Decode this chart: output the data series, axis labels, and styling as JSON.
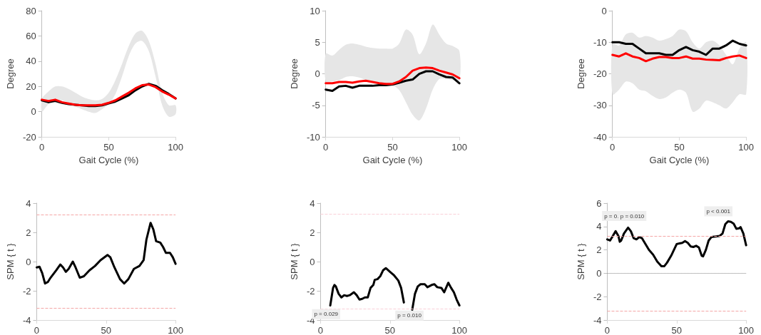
{
  "chart_data": [
    {
      "type": "line",
      "xlabel": "Gait Cycle (%)",
      "ylabel": "Degree",
      "xlim": [
        0,
        100
      ],
      "xticks": [
        0,
        50,
        100
      ],
      "ylim": [
        -20,
        80
      ],
      "yticks": [
        -20,
        0,
        20,
        40,
        60,
        80
      ],
      "grid": false,
      "marker": "none",
      "line_style": "solid",
      "x": [
        0,
        5,
        10,
        15,
        20,
        25,
        30,
        35,
        40,
        45,
        50,
        55,
        60,
        65,
        70,
        75,
        80,
        85,
        90,
        95,
        100
      ],
      "series": [
        {
          "color": "#e6e6e6",
          "values": [
            null,
            null,
            null,
            null,
            null,
            null,
            null,
            null,
            null,
            null,
            null,
            null,
            null,
            null,
            null,
            null,
            null,
            null,
            null,
            null,
            null
          ],
          "lower": [
            0,
            6,
            9,
            9,
            7,
            4,
            2,
            0,
            -1,
            2,
            6,
            14,
            28,
            44,
            54,
            56,
            48,
            28,
            5,
            -4,
            -2
          ],
          "upper": [
            10,
            16,
            20,
            20,
            18,
            15,
            12,
            10,
            9,
            10,
            15,
            25,
            38,
            52,
            62,
            64,
            56,
            38,
            15,
            5,
            5
          ]
        },
        {
          "color": "#000000",
          "values": [
            9,
            7.5,
            8.5,
            7,
            6,
            5.5,
            5,
            4.5,
            4.5,
            5,
            6.5,
            8,
            10.5,
            13,
            17,
            20,
            22,
            20.5,
            17,
            14,
            10.5
          ]
        },
        {
          "color": "#ff0000",
          "values": [
            9.5,
            8.5,
            9.5,
            7.5,
            6.5,
            5.5,
            5,
            5,
            5,
            5.5,
            7,
            9,
            12,
            15,
            18.5,
            21,
            21.5,
            19.5,
            16,
            13.5,
            10.5
          ]
        }
      ]
    },
    {
      "type": "line",
      "xlabel": "Gait Cycle (%)",
      "ylabel": "Degree",
      "xlim": [
        0,
        100
      ],
      "xticks": [
        0,
        50,
        100
      ],
      "ylim": [
        -10,
        10
      ],
      "yticks": [
        -10,
        -5,
        0,
        5,
        10
      ],
      "grid": false,
      "marker": "none",
      "line_style": "solid",
      "x": [
        0,
        5,
        10,
        15,
        20,
        25,
        30,
        35,
        40,
        45,
        50,
        55,
        60,
        65,
        70,
        75,
        80,
        85,
        90,
        95,
        100
      ],
      "series": [
        {
          "color": "#e6e6e6",
          "values": [
            null,
            null,
            null,
            null,
            null,
            null,
            null,
            null,
            null,
            null,
            null,
            null,
            null,
            null,
            null,
            null,
            null,
            null,
            null,
            null,
            null
          ],
          "lower": [
            -1.2,
            -1.2,
            -1,
            -0.5,
            -0.4,
            -0.6,
            -1,
            -1.3,
            -1.5,
            -1.6,
            -1.8,
            -2.6,
            -4.5,
            -6.5,
            -7.4,
            -5.5,
            -2.5,
            -0.8,
            -0.8,
            -1,
            -1
          ],
          "upper": [
            3.2,
            2.9,
            3.8,
            4.6,
            4.8,
            4.6,
            4.3,
            4.1,
            4,
            4,
            4,
            4.8,
            7,
            6.2,
            3.1,
            4.8,
            7.8,
            6.2,
            4.8,
            4.4,
            3.6
          ]
        },
        {
          "color": "#000000",
          "values": [
            -2.5,
            -2.7,
            -2,
            -1.9,
            -2.2,
            -1.9,
            -1.9,
            -1.9,
            -1.8,
            -1.8,
            -1.7,
            -1.4,
            -1.1,
            -0.9,
            0,
            0.4,
            0.4,
            -0.1,
            -0.5,
            -0.6,
            -1.5
          ]
        },
        {
          "color": "#ff0000",
          "values": [
            -1.5,
            -1.5,
            -1.3,
            -1.3,
            -1.4,
            -1.2,
            -1.1,
            -1.3,
            -1.5,
            -1.6,
            -1.6,
            -1.2,
            -0.5,
            0.5,
            0.9,
            1,
            0.9,
            0.5,
            0.2,
            -0.1,
            -0.7
          ]
        }
      ]
    },
    {
      "type": "line",
      "xlabel": "Gait Cycle (%)",
      "ylabel": "Degree",
      "xlim": [
        0,
        100
      ],
      "xticks": [
        0,
        50,
        100
      ],
      "ylim": [
        -40,
        0
      ],
      "yticks": [
        -40,
        -30,
        -20,
        -10,
        0
      ],
      "grid": false,
      "marker": "none",
      "line_style": "solid",
      "x": [
        0,
        5,
        10,
        15,
        20,
        25,
        30,
        35,
        40,
        45,
        50,
        55,
        60,
        65,
        70,
        75,
        80,
        85,
        90,
        95,
        100
      ],
      "series": [
        {
          "color": "#e6e6e6",
          "values": [
            null,
            null,
            null,
            null,
            null,
            null,
            null,
            null,
            null,
            null,
            null,
            null,
            null,
            null,
            null,
            null,
            null,
            null,
            null,
            null,
            null
          ],
          "lower": [
            -26.5,
            -25,
            -22.5,
            -23,
            -25,
            -25.5,
            -27,
            -28,
            -27.5,
            -26,
            -25,
            -26,
            -32,
            -31,
            -28.5,
            -29,
            -30,
            -31,
            -29,
            -26.5,
            -26.5
          ],
          "upper": [
            -10.5,
            -11,
            -7.5,
            -7,
            -8.5,
            -8,
            -8.5,
            -9.5,
            -9,
            -8,
            -6,
            -6.5,
            -10,
            -12,
            -10,
            -9.5,
            -11,
            -14,
            -17,
            -12,
            -10
          ]
        },
        {
          "color": "#000000",
          "values": [
            -10,
            -10,
            -10.5,
            -10.5,
            -12,
            -13.5,
            -13.5,
            -13.5,
            -14,
            -14,
            -12.5,
            -11.5,
            -12.5,
            -13,
            -14,
            -12,
            -12,
            -11,
            -9.5,
            -10.5,
            -11
          ]
        },
        {
          "color": "#ff0000",
          "values": [
            -14,
            -14.5,
            -13.5,
            -14.5,
            -15,
            -16,
            -15.2,
            -14.7,
            -14.7,
            -15,
            -15,
            -14.5,
            -15.2,
            -15.2,
            -15.5,
            -15.6,
            -15.7,
            -15,
            -14.5,
            -14.2,
            -15
          ]
        }
      ]
    },
    {
      "type": "line",
      "ylabel": "SPM { t }",
      "xlim": [
        0,
        100
      ],
      "xticks": [
        0,
        50,
        100
      ],
      "ylim": [
        -4,
        4
      ],
      "yticks": [
        -4,
        -2,
        0,
        2,
        4
      ],
      "grid": false,
      "marker": "none",
      "line_style": "solid",
      "ref_lines": [
        {
          "axis": "y",
          "value": 3.2,
          "color": "#f4a6a6",
          "line_style": "dashed"
        },
        {
          "axis": "y",
          "value": -3.2,
          "color": "#f4a6a6",
          "line_style": "dashed"
        }
      ],
      "x": [
        0,
        2,
        4,
        6,
        8,
        10,
        14,
        17,
        19,
        21,
        23,
        26,
        28,
        31,
        34,
        38,
        42,
        46,
        51,
        53,
        56,
        60,
        63,
        66,
        70,
        74,
        77,
        79,
        82,
        84,
        86,
        89,
        91,
        93,
        96,
        98,
        100
      ],
      "series": [
        {
          "color": "#000000",
          "values": [
            -0.4,
            -0.35,
            -0.8,
            -1.5,
            -1.4,
            -1.1,
            -0.6,
            -0.2,
            -0.4,
            -0.7,
            -0.5,
            0,
            -0.4,
            -1.1,
            -1,
            -0.6,
            -0.3,
            0.1,
            0.45,
            0.3,
            -0.4,
            -1.2,
            -1.5,
            -1.2,
            -0.5,
            -0.3,
            0.1,
            1.5,
            2.65,
            2.2,
            1.4,
            1.3,
            1,
            0.6,
            0.6,
            0.3,
            -0.15
          ]
        }
      ]
    },
    {
      "type": "line",
      "ylabel": "SPM { t }",
      "xlim": [
        0,
        100
      ],
      "xticks": [
        0,
        50,
        100
      ],
      "ylim": [
        -4,
        4
      ],
      "yticks": [
        -4,
        -2,
        0,
        2,
        4
      ],
      "grid": false,
      "marker": "none",
      "line_style": "solid",
      "ref_lines": [
        {
          "axis": "y",
          "value": 3.25,
          "color": "#f9d0d8",
          "line_style": "dashed"
        },
        {
          "axis": "y",
          "value": -3.25,
          "color": "#f9d0d8",
          "line_style": "dashed"
        }
      ],
      "annotations": [
        {
          "text": "p = 0.029",
          "x": 4,
          "y": -3.6
        },
        {
          "text": "p = 0.010",
          "x": 64,
          "y": -3.7
        }
      ],
      "x": [
        7,
        9,
        10,
        11,
        13,
        15,
        17,
        19,
        21,
        24,
        26,
        28,
        30,
        32,
        34,
        36,
        38,
        39,
        41,
        43,
        45,
        47,
        50,
        53,
        56,
        58,
        60,
        62,
        64,
        66,
        68,
        70,
        72,
        75,
        77,
        80,
        82,
        84,
        87,
        89,
        92,
        94,
        96,
        98,
        100
      ],
      "series": [
        {
          "color": "#000000",
          "values": [
            -3,
            -1.8,
            -1.6,
            -1.7,
            -2.2,
            -2.45,
            -2.3,
            -2.35,
            -2.3,
            -2.1,
            -2.3,
            -2.6,
            -2.55,
            -2.45,
            -2.45,
            -1.8,
            -1.6,
            -1.25,
            -1.2,
            -1,
            -0.6,
            -0.45,
            -0.7,
            -0.95,
            -1.3,
            -1.8,
            -2.8,
            null,
            null,
            -3.3,
            -2.2,
            -1.7,
            -1.55,
            -1.55,
            -1.75,
            -1.6,
            -1.55,
            -1.75,
            -1.8,
            -2.1,
            -1.45,
            -1.8,
            -2.1,
            -2.6,
            -3
          ]
        }
      ]
    },
    {
      "type": "line",
      "ylabel": "SPM { t }",
      "xlim": [
        0,
        100
      ],
      "xticks": [
        0,
        50,
        100
      ],
      "ylim": [
        -4,
        6
      ],
      "yticks": [
        -4,
        -2,
        0,
        2,
        4,
        6
      ],
      "grid": false,
      "marker": "none",
      "line_style": "solid",
      "ref_lines": [
        {
          "axis": "y",
          "value": 3.2,
          "color": "#f4a6a6",
          "line_style": "dashed"
        },
        {
          "axis": "y",
          "value": -3.2,
          "color": "#f4a6a6",
          "line_style": "dashed"
        },
        {
          "axis": "y",
          "value": 0,
          "color": "#808080",
          "line_style": "dotted"
        }
      ],
      "annotations": [
        {
          "text": "p = 0.",
          "x": 3,
          "y": 4.9
        },
        {
          "text": "p = 0.010",
          "x": 18,
          "y": 4.9
        },
        {
          "text": "p < 0.001",
          "x": 80,
          "y": 5.3
        }
      ],
      "x": [
        0,
        2,
        4,
        6,
        8,
        9,
        10,
        12,
        15,
        17,
        19,
        21,
        23,
        25,
        28,
        30,
        33,
        36,
        39,
        41,
        43,
        46,
        48,
        50,
        52,
        54,
        56,
        58,
        60,
        62,
        64,
        66,
        68,
        69,
        71,
        73,
        75,
        78,
        81,
        83,
        85,
        87,
        89,
        91,
        93,
        95,
        96,
        98,
        100
      ],
      "series": [
        {
          "color": "#000000",
          "values": [
            2.9,
            2.8,
            3.2,
            3.6,
            3.2,
            2.7,
            2.8,
            3.4,
            3.9,
            3.6,
            3,
            2.9,
            3.1,
            3,
            2.4,
            2,
            1.6,
            1,
            0.6,
            0.6,
            0.9,
            1.5,
            2,
            2.5,
            2.55,
            2.6,
            2.75,
            2.6,
            2.3,
            2.25,
            2.35,
            2.2,
            1.5,
            1.45,
            2,
            2.8,
            3.1,
            3.15,
            3.2,
            3.4,
            4.2,
            4.45,
            4.4,
            4.25,
            3.8,
            3.85,
            3.95,
            3.4,
            2.4
          ]
        }
      ]
    }
  ]
}
